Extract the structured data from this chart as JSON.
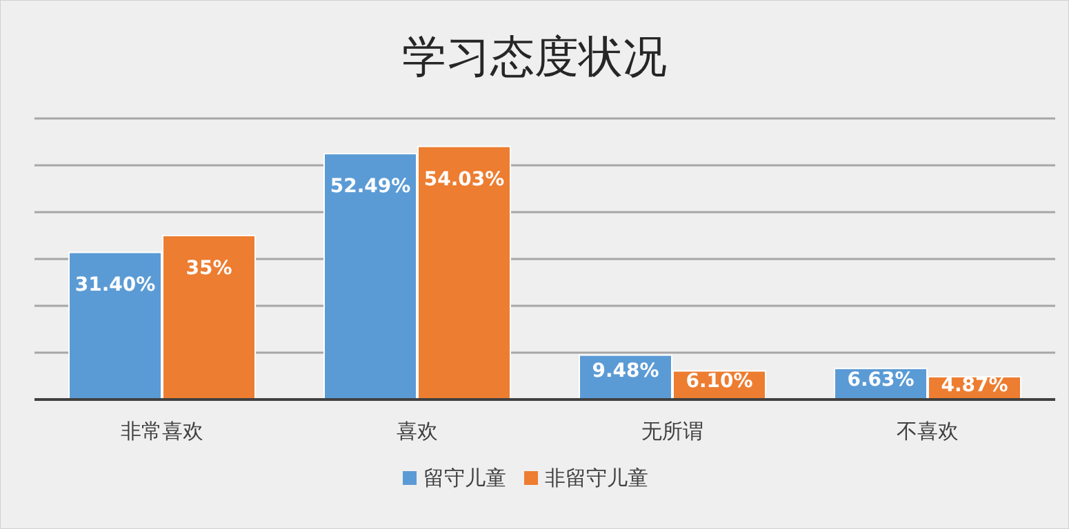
{
  "chart_data": {
    "type": "bar",
    "title": "学习态度状况",
    "categories": [
      "非常喜欢",
      "喜欢",
      "无所谓",
      "不喜欢"
    ],
    "series": [
      {
        "name": "留守儿童",
        "color": "#5b9bd5",
        "values": [
          31.4,
          52.49,
          9.48,
          6.63
        ],
        "value_labels": [
          "31.40%",
          "52.49%",
          "9.48%",
          "6.63%"
        ]
      },
      {
        "name": "非留守儿童",
        "color": "#ed7d31",
        "values": [
          35,
          54.03,
          6.1,
          4.87
        ],
        "value_labels": [
          "35%",
          "54.03%",
          "6.10%",
          "4.87%"
        ]
      }
    ],
    "ylim": [
      0,
      60
    ],
    "yticks": [
      {
        "value": 0,
        "label": null
      },
      {
        "value": 10,
        "label": null
      },
      {
        "value": 20,
        "label": null
      },
      {
        "value": 30,
        "label": null
      },
      {
        "value": 40,
        "label": null
      },
      {
        "value": 50,
        "label": null
      },
      {
        "value": 60,
        "label": null
      }
    ],
    "grid": "y",
    "legend": "bottom"
  }
}
